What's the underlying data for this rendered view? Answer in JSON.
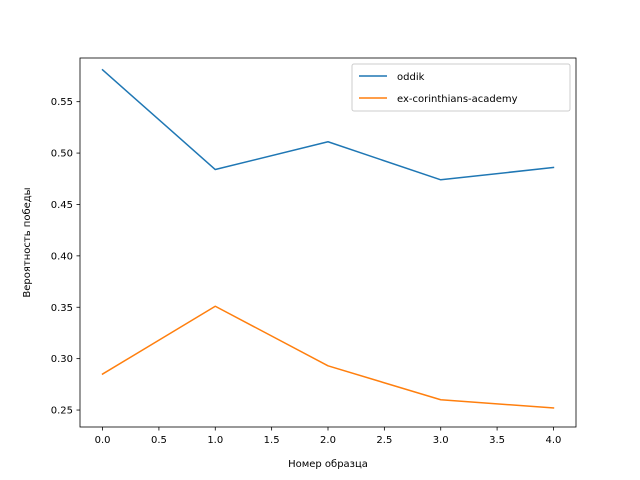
{
  "chart_data": {
    "type": "line",
    "title": "",
    "xlabel": "Номер образца",
    "ylabel": "Вероятность победы",
    "xlim": [
      -0.2,
      4.2
    ],
    "ylim": [
      0.2335,
      0.5925
    ],
    "xticks": [
      0.0,
      0.5,
      1.0,
      1.5,
      2.0,
      2.5,
      3.0,
      3.5,
      4.0
    ],
    "xtick_labels": [
      "0.0",
      "0.5",
      "1.0",
      "1.5",
      "2.0",
      "2.5",
      "3.0",
      "3.5",
      "4.0"
    ],
    "yticks": [
      0.25,
      0.3,
      0.35,
      0.4,
      0.45,
      0.5,
      0.55
    ],
    "ytick_labels": [
      "0.25",
      "0.30",
      "0.35",
      "0.40",
      "0.45",
      "0.50",
      "0.55"
    ],
    "grid": false,
    "legend_position": "top-right",
    "x": [
      0,
      1,
      2,
      3,
      4
    ],
    "series": [
      {
        "name": "oddik",
        "color": "#1f77b4",
        "values": [
          0.581,
          0.484,
          0.511,
          0.474,
          0.486
        ]
      },
      {
        "name": "ex-corinthians-academy",
        "color": "#ff7f0e",
        "values": [
          0.285,
          0.351,
          0.293,
          0.26,
          0.252
        ]
      }
    ]
  }
}
